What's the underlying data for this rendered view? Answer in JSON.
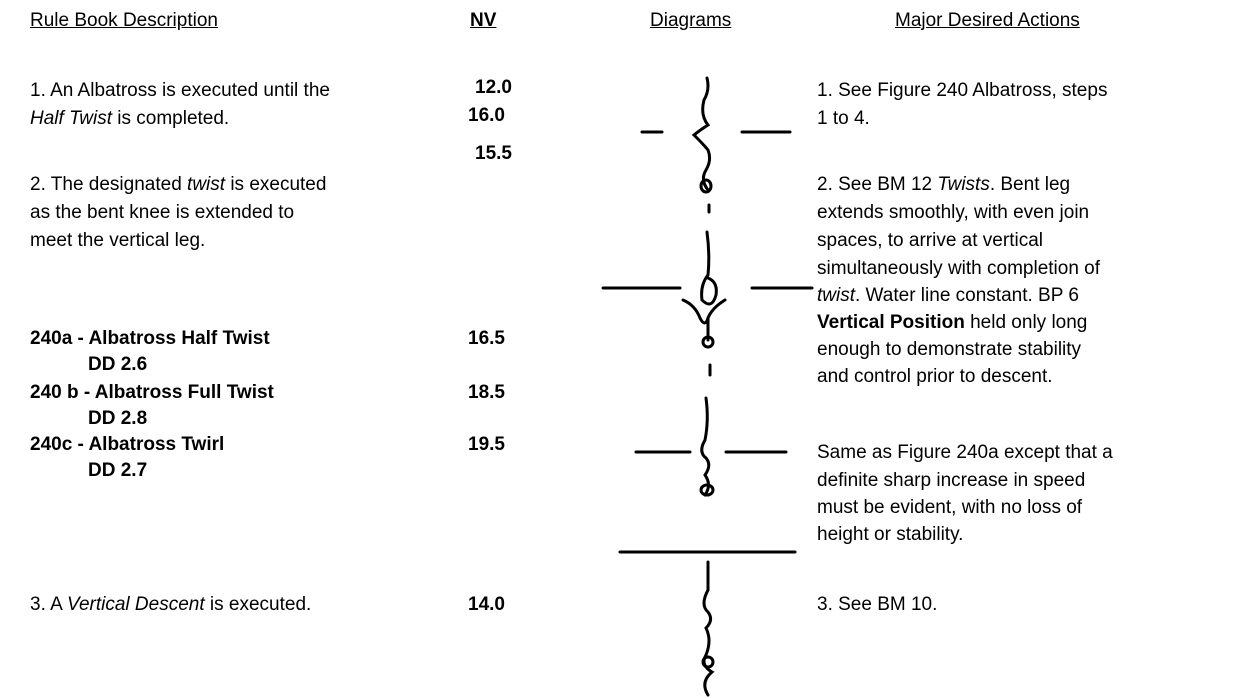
{
  "headers": [
    "Rule Book Description",
    "NV",
    "Diagrams",
    "Major Desired Actions"
  ],
  "rule_book": {
    "item1": [
      "1. An Albatross is executed until the",
      "Half Twist",
      " is completed."
    ],
    "item2": [
      "2. The designated ",
      "twist",
      " is executed",
      "as the bent knee is extended to",
      "meet the vertical leg."
    ],
    "figures": [
      {
        "name": "240a - Albatross Half Twist",
        "dd": "DD 2.6",
        "nv": "16.5"
      },
      {
        "name": "240 b - Albatross Full Twist",
        "dd": "DD 2.8",
        "nv": "18.5"
      },
      {
        "name": "240c - Albatross Twirl",
        "dd": "DD 2.7",
        "nv": "19.5"
      }
    ],
    "item3": [
      "3.  A ",
      "Vertical Descent",
      " is executed."
    ]
  },
  "nv": [
    "12.0",
    "16.0",
    "15.5",
    "14.0"
  ],
  "actions": {
    "item1": [
      "1. See Figure 240 Albatross, steps",
      "1 to 4."
    ],
    "item2": [
      "2. See BM 12 ",
      "Twists",
      ".  Bent leg",
      "extends smoothly, with even join",
      "spaces, to arrive at vertical",
      "simultaneously with completion of",
      "twist",
      ".  Water line constant.  BP 6",
      "Vertical Position",
      " held only long",
      "enough to demonstrate stability",
      "and control prior to descent."
    ],
    "item3": [
      "Same as Figure 240a except that a",
      "definite sharp increase in speed",
      "must be evident, with no loss of",
      "height or stability."
    ],
    "item4": [
      "3.  See BM 10."
    ]
  }
}
